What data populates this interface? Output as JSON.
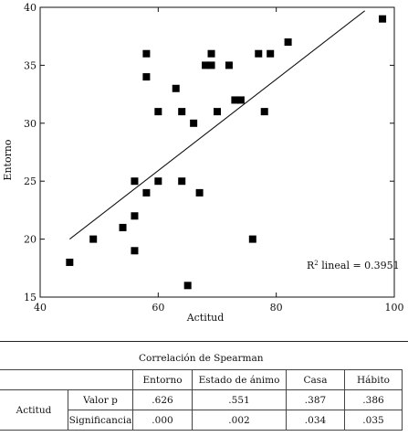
{
  "chart_data": {
    "type": "scatter",
    "xlabel": "Actitud",
    "ylabel": "Entorno",
    "xlim": [
      40,
      100
    ],
    "ylim": [
      15,
      40
    ],
    "xticks": [
      40,
      60,
      80,
      100
    ],
    "yticks": [
      15,
      20,
      25,
      30,
      35,
      40
    ],
    "grid": false,
    "annotation_prefix": "R",
    "annotation_sup": "2",
    "annotation_text": " lineal = 0.3951",
    "regression_line": {
      "x": [
        45,
        95
      ],
      "y": [
        20.0,
        39.7
      ]
    },
    "points": [
      {
        "x": 45,
        "y": 18
      },
      {
        "x": 49,
        "y": 20
      },
      {
        "x": 54,
        "y": 21
      },
      {
        "x": 56,
        "y": 19
      },
      {
        "x": 56,
        "y": 22
      },
      {
        "x": 56,
        "y": 25
      },
      {
        "x": 58,
        "y": 24
      },
      {
        "x": 58,
        "y": 34
      },
      {
        "x": 58,
        "y": 36
      },
      {
        "x": 60,
        "y": 25
      },
      {
        "x": 60,
        "y": 31
      },
      {
        "x": 63,
        "y": 33
      },
      {
        "x": 64,
        "y": 31
      },
      {
        "x": 64,
        "y": 25
      },
      {
        "x": 65,
        "y": 16
      },
      {
        "x": 66,
        "y": 30
      },
      {
        "x": 67,
        "y": 24
      },
      {
        "x": 68,
        "y": 35
      },
      {
        "x": 69,
        "y": 35
      },
      {
        "x": 69,
        "y": 36
      },
      {
        "x": 70,
        "y": 31
      },
      {
        "x": 72,
        "y": 35
      },
      {
        "x": 73,
        "y": 32
      },
      {
        "x": 74,
        "y": 32
      },
      {
        "x": 76,
        "y": 20
      },
      {
        "x": 77,
        "y": 36
      },
      {
        "x": 78,
        "y": 31
      },
      {
        "x": 79,
        "y": 36
      },
      {
        "x": 82,
        "y": 37
      },
      {
        "x": 98,
        "y": 39
      }
    ]
  },
  "table": {
    "caption": "Correlación de Spearman",
    "columns": [
      "Entorno",
      "Estado de ánimo",
      "Casa",
      "Hábito"
    ],
    "row_group": "Actitud",
    "rows": [
      {
        "label": "Valor p",
        "values": [
          ".626",
          ".551",
          ".387",
          ".386"
        ]
      },
      {
        "label": "Significancia",
        "values": [
          ".000",
          ".002",
          ".034",
          ".035"
        ]
      }
    ]
  }
}
